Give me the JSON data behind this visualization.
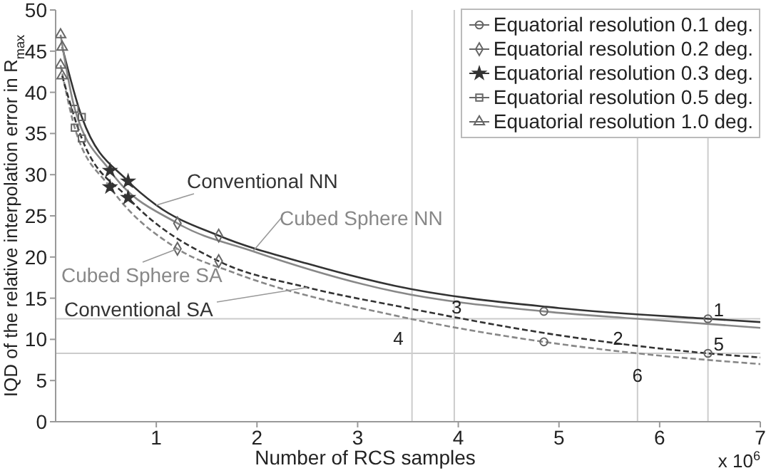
{
  "chart_data": {
    "type": "line",
    "xlabel": "Number of RCS samples",
    "ylabel": "IQD of the relative interpolation error in R$_{max}$",
    "xlim": [
      0,
      7
    ],
    "xticks": [
      1,
      2,
      3,
      4,
      5,
      6,
      7
    ],
    "ylim": [
      0,
      50
    ],
    "yticks": [
      0,
      5,
      10,
      15,
      20,
      25,
      30,
      35,
      40,
      45,
      50
    ],
    "grid": false,
    "legend": "top right",
    "series": [
      {
        "name": "Conventional NN",
        "color": "#333333",
        "line_style": "solid",
        "x": [
          0.065,
          0.26,
          0.72,
          1.0,
          1.62,
          2.5,
          3.37,
          5,
          6.48,
          7
        ],
        "values": [
          45.5,
          37.0,
          29.2,
          26.3,
          22.6,
          19.2,
          16.5,
          13.8,
          12.5,
          12.1
        ]
      },
      {
        "name": "Cubed Sphere NN",
        "color": "#888888",
        "line_style": "solid",
        "x": [
          0.049,
          0.19,
          0.54,
          1.21,
          1.96,
          3.37,
          4.85,
          5.78,
          7
        ],
        "values": [
          47.0,
          38.0,
          30.5,
          24.1,
          20.7,
          15.8,
          13.4,
          12.5,
          11.4
        ]
      },
      {
        "name": "Cubed Sphere SA",
        "color": "#888888",
        "line_style": "dashed",
        "x": [
          0.049,
          0.19,
          0.54,
          1.21,
          1.77,
          3.37,
          4.85,
          5.78,
          7
        ],
        "values": [
          43.3,
          35.7,
          28.5,
          21.0,
          18.1,
          12.9,
          9.7,
          8.3,
          7.0
        ]
      },
      {
        "name": "Conventional SA",
        "color": "#333333",
        "line_style": "dashed",
        "x": [
          0.065,
          0.26,
          0.72,
          1.62,
          2.5,
          3.37,
          5,
          6.48,
          7
        ],
        "values": [
          42.0,
          34.4,
          27.2,
          19.5,
          16.3,
          14.1,
          10.5,
          8.3,
          7.8
        ]
      },
      {
        "type": "scatter",
        "name": "Equatorial resolution 0.1 deg.",
        "color": "#666666",
        "marker": "circle",
        "x": [
          6.48,
          6.48,
          4.85,
          4.85
        ],
        "values": [
          12.5,
          8.3,
          13.4,
          9.7
        ]
      },
      {
        "type": "scatter",
        "name": "Equatorial resolution 0.2 deg.",
        "color": "#666666",
        "marker": "diamond",
        "x": [
          1.62,
          1.62,
          1.21,
          1.21
        ],
        "values": [
          22.6,
          19.5,
          24.1,
          21.0
        ]
      },
      {
        "type": "scatter",
        "name": "Equatorial resolution 0.3 deg.",
        "color": "#333333",
        "marker": "star",
        "x": [
          0.72,
          0.72,
          0.54,
          0.54
        ],
        "values": [
          29.2,
          27.2,
          30.5,
          28.5
        ]
      },
      {
        "type": "scatter",
        "name": "Equatorial resolution 0.5 deg.",
        "color": "#666666",
        "marker": "square",
        "x": [
          0.26,
          0.26,
          0.19,
          0.19
        ],
        "values": [
          37.0,
          34.4,
          38.0,
          35.7
        ]
      },
      {
        "type": "scatter",
        "name": "Equatorial resolution 1.0 deg.",
        "color": "#666666",
        "marker": "triangle",
        "x": [
          0.065,
          0.065,
          0.049,
          0.049
        ],
        "values": [
          45.5,
          42.0,
          47.0,
          43.3
        ]
      }
    ],
    "ref_lines": [
      {
        "axis": "y",
        "value": 12.5,
        "color": "#cccccc"
      },
      {
        "axis": "y",
        "value": 8.3,
        "color": "#cccccc"
      },
      {
        "axis": "x",
        "value": 3.54,
        "color": "#cccccc"
      },
      {
        "axis": "x",
        "value": 3.96,
        "color": "#cccccc"
      },
      {
        "axis": "x",
        "value": 5.78,
        "color": "#cccccc"
      },
      {
        "axis": "x",
        "value": 6.48,
        "color": "#cccccc"
      }
    ],
    "annotations": [
      "x 10$^{6}$",
      {
        "text": "1",
        "x": 6.48,
        "y": 12.5
      },
      {
        "text": "2",
        "x": 5.78,
        "y": 12.5
      },
      {
        "text": "3",
        "x": 3.96,
        "y": 12.5
      },
      {
        "text": "4",
        "x": 3.54,
        "y": 12.5
      },
      {
        "text": "5",
        "x": 6.48,
        "y": 8.3
      },
      {
        "text": "6",
        "x": 5.78,
        "y": 8.3
      }
    ]
  }
}
